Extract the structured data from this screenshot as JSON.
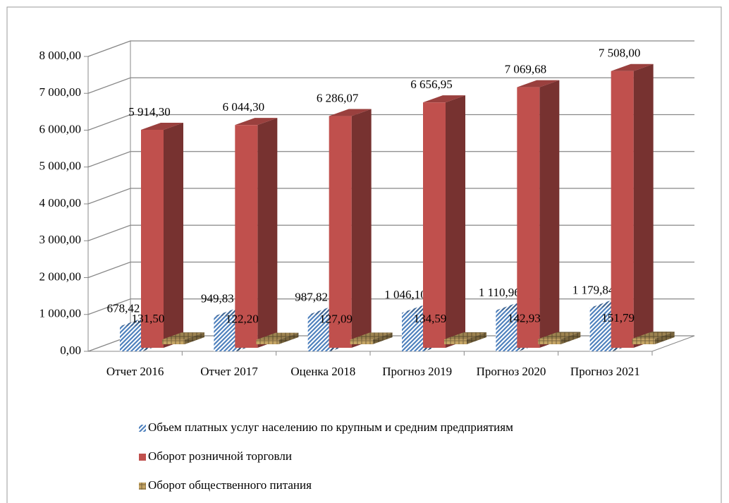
{
  "chart_data": {
    "type": "bar3d",
    "categories": [
      "Отчет 2016",
      "Отчет 2017",
      "Оценка 2018",
      "Прогноз 2019",
      "Прогноз 2020",
      "Прогноз 2021"
    ],
    "series": [
      {
        "name": "Объем платных услуг населению по крупным и средним предприятиям",
        "color": "#4f81bd",
        "pattern": "hatched",
        "values": [
          678.42,
          949.83,
          987.82,
          1046.1,
          1110.96,
          1179.84
        ],
        "value_labels": [
          "678,42",
          "949,83",
          "987,82",
          "1 046,10",
          "1 110,96",
          "1 179,84"
        ]
      },
      {
        "name": "Оборот розничной торговли",
        "color": "#c0504d",
        "values": [
          5914.3,
          6044.3,
          6286.07,
          6656.95,
          7069.68,
          7508.0
        ],
        "value_labels": [
          "5 914,30",
          "6 044,30",
          "6 286,07",
          "6 656,95",
          "7 069,68",
          "7 508,00"
        ]
      },
      {
        "name": "Оборот общественного питания",
        "color": "#c4a464",
        "pattern": "grid",
        "values": [
          131.5,
          122.2,
          127.09,
          134.59,
          142.93,
          151.79
        ],
        "value_labels": [
          "131,50",
          "122,20",
          "127,09",
          "134,59",
          "142,93",
          "151,79"
        ]
      }
    ],
    "ylim": [
      0,
      8000
    ],
    "yticks": [
      {
        "value": 0,
        "label": "0,00"
      },
      {
        "value": 1000,
        "label": "1 000,00"
      },
      {
        "value": 2000,
        "label": "2 000,00"
      },
      {
        "value": 3000,
        "label": "3 000,00"
      },
      {
        "value": 4000,
        "label": "4 000,00"
      },
      {
        "value": 5000,
        "label": "5 000,00"
      },
      {
        "value": 6000,
        "label": "6 000,00"
      },
      {
        "value": 7000,
        "label": "7 000,00"
      },
      {
        "value": 8000,
        "label": "8 000,00"
      }
    ],
    "grid": true,
    "legend": "bottom"
  }
}
